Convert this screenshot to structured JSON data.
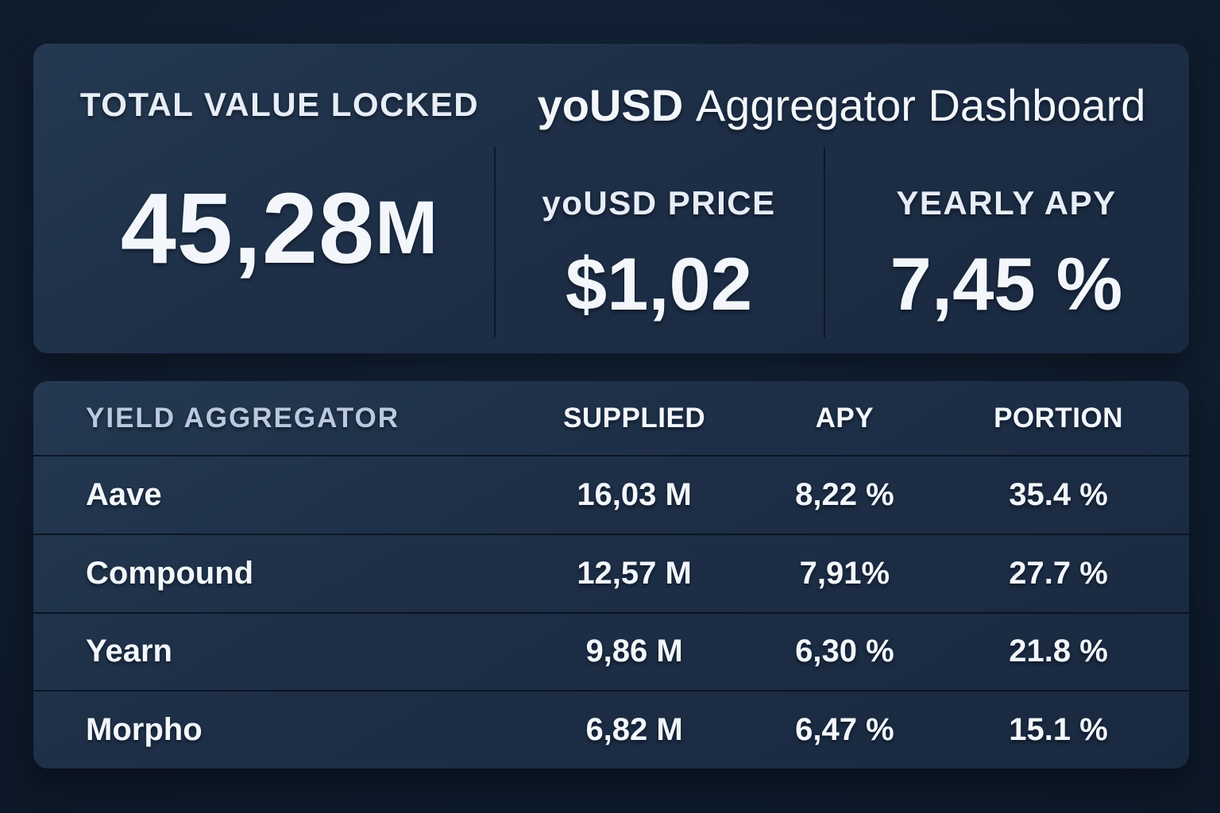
{
  "header": {
    "title_brand": "yoUSD",
    "title_rest": "Aggregator Dashboard"
  },
  "stats": {
    "tvl": {
      "label": "TOTAL VALUE LOCKED",
      "value": "45,28",
      "suffix": "M"
    },
    "price": {
      "label": "yoUSD PRICE",
      "value": "$1,02"
    },
    "apy": {
      "label": "YEARLY APY",
      "value": "7,45 %"
    }
  },
  "table": {
    "headers": {
      "aggregator": "YIELD AGGREGATOR",
      "supplied": "SUPPLIED",
      "apy": "APY",
      "portion": "PORTION"
    },
    "rows": [
      {
        "name": "Aave",
        "supplied": "16,03 M",
        "apy": "8,22 %",
        "portion": "35.4 %"
      },
      {
        "name": "Compound",
        "supplied": "12,57 M",
        "apy": "7,91%",
        "portion": "27.7 %"
      },
      {
        "name": "Yearn",
        "supplied": "9,86 M",
        "apy": "6,30 %",
        "portion": "21.8 %"
      },
      {
        "name": "Morpho",
        "supplied": "6,82 M",
        "apy": "6,47 %",
        "portion": "15.1 %"
      }
    ]
  },
  "colors": {
    "background": "#0e1b2c",
    "card": "#1d2e46",
    "text": "#f3f7fc",
    "muted_header": "#bac9de",
    "divider": "#0a1422"
  }
}
